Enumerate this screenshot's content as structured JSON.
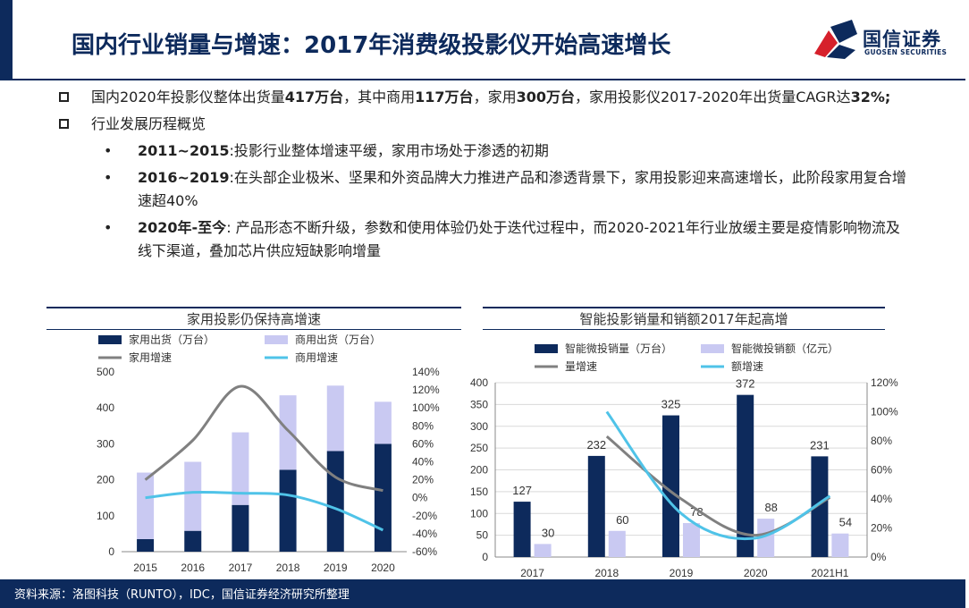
{
  "header": {
    "title": "国内行业销量与增速：2017年消费级投影仪开始高速增长",
    "logo_cn": "国信证券",
    "logo_en": "GUOSEN SECURITIES"
  },
  "bullets": {
    "b1_p1": "国内2020年投影仪整体出货量",
    "b1_v1": "417万台",
    "b1_p2": "，其中商用",
    "b1_v2": "117万台",
    "b1_p3": "，家用",
    "b1_v3": "300万台",
    "b1_p4": "，家用投影仪2017-2020年出货量CAGR达",
    "b1_v4": "32%;",
    "b2": "行业发展历程概览",
    "s1_bold": "2011~2015",
    "s1_text": ":投影行业整体增速平缓，家用市场处于渗透的初期",
    "s2_bold": "2016~2019",
    "s2_text": ":在头部企业极米、坚果和外资品牌大力推进产品和渗透背景下，家用投影迎来高速增长，此阶段家用复合增速超40%",
    "s3_bold": "2020年-至今",
    "s3_text": ": 产品形态不断升级，参数和使用体验仍处于迭代过程中，而2020-2021年行业放缓主要是疫情影响物流及线下渠道，叠加芯片供应短缺影响增量"
  },
  "chart_data": [
    {
      "type": "bar",
      "title": "家用投影仍保持高增速",
      "categories": [
        "2015",
        "2016",
        "2017",
        "2018",
        "2019",
        "2020"
      ],
      "stacked": true,
      "series": [
        {
          "name": "家用出货（万台）",
          "kind": "bar",
          "axis": "left",
          "values": [
            35,
            58,
            130,
            228,
            280,
            300
          ],
          "color": "#0d2a5c"
        },
        {
          "name": "商用出货（万台）",
          "kind": "bar",
          "axis": "left",
          "values": [
            185,
            192,
            202,
            207,
            182,
            117
          ],
          "color": "#c9c9f2"
        },
        {
          "name": "家用增速",
          "kind": "line",
          "axis": "right",
          "values": [
            0.2,
            0.64,
            1.24,
            0.75,
            0.23,
            0.08
          ],
          "color": "#808080"
        },
        {
          "name": "商用增速",
          "kind": "line",
          "axis": "right",
          "values": [
            0.0,
            0.06,
            0.05,
            0.03,
            -0.12,
            -0.36
          ],
          "color": "#4fc3e8"
        }
      ],
      "ylim": [
        0,
        500
      ],
      "yticks": [
        "0",
        "100",
        "200",
        "300",
        "400",
        "500"
      ],
      "y2lim": [
        -0.6,
        1.4
      ],
      "y2ticks": [
        "-60%",
        "-40%",
        "-20%",
        "0%",
        "20%",
        "40%",
        "60%",
        "80%",
        "100%",
        "120%",
        "140%"
      ],
      "legend": "top"
    },
    {
      "type": "bar",
      "title": "智能投影销量和销额2017年起高增",
      "categories": [
        "2017",
        "2018",
        "2019",
        "2020",
        "2021H1"
      ],
      "series": [
        {
          "name": "智能微投销量（万台）",
          "kind": "bar",
          "axis": "left",
          "values": [
            127,
            232,
            325,
            372,
            231
          ],
          "labels": [
            "127",
            "232",
            "325",
            "372",
            "231"
          ],
          "color": "#0d2a5c"
        },
        {
          "name": "智能微投销额（亿元）",
          "kind": "bar",
          "axis": "left",
          "values": [
            30,
            60,
            78,
            88,
            54
          ],
          "labels": [
            "30",
            "60",
            "78",
            "88",
            "54"
          ],
          "color": "#c9c9f2"
        },
        {
          "name": "量增速",
          "kind": "line",
          "axis": "right",
          "values": [
            null,
            0.83,
            0.4,
            0.15,
            0.41
          ],
          "color": "#808080"
        },
        {
          "name": "额增速",
          "kind": "line",
          "axis": "right",
          "values": [
            null,
            1.0,
            0.3,
            0.13,
            0.42
          ],
          "color": "#4fc3e8"
        }
      ],
      "ylim": [
        0,
        400
      ],
      "yticks": [
        "0",
        "50",
        "100",
        "150",
        "200",
        "250",
        "300",
        "350",
        "400"
      ],
      "y2lim": [
        0,
        1.2
      ],
      "y2ticks": [
        "0%",
        "20%",
        "40%",
        "60%",
        "80%",
        "100%",
        "120%"
      ],
      "legend": "top"
    }
  ],
  "footer": {
    "source": "资料来源：洛图科技（RUNTO），IDC，国信证券经济研究所整理"
  },
  "colors": {
    "brand": "#0d2a5c",
    "accent_red": "#d6202b"
  }
}
